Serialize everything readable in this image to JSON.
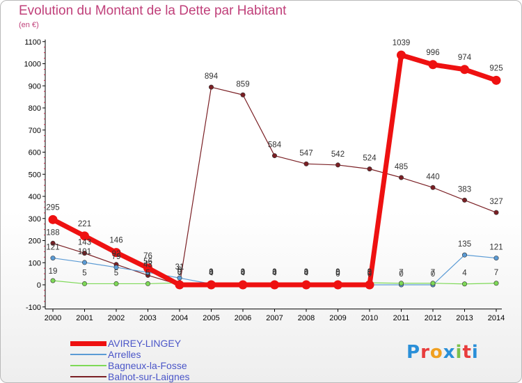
{
  "header": {
    "title": "Evolution du Montant de la Dette par Habitant",
    "unit": "(en €)"
  },
  "logo": {
    "text": "Proxiti",
    "colors": [
      "#2a8fd8",
      "#e83c3c",
      "#f0a020",
      "#2a8fd8",
      "#7cc04a",
      "#e83c3c",
      "#2a8fd8"
    ]
  },
  "chart_data": {
    "type": "line",
    "title": "Evolution du Montant de la Dette par Habitant",
    "ylabel": "(en €)",
    "xlabel": "",
    "x": [
      "2000",
      "2001",
      "2002",
      "2003",
      "2004",
      "2005",
      "2006",
      "2007",
      "2008",
      "2009",
      "2010",
      "2011",
      "2012",
      "2013",
      "2014"
    ],
    "yticks": [
      -100,
      0,
      100,
      200,
      300,
      400,
      500,
      600,
      700,
      800,
      900,
      1000,
      1100
    ],
    "ylim": [
      -100,
      1100
    ],
    "grid": false,
    "legend": "bottom-left",
    "series": [
      {
        "name": "AVIREY-LINGEY",
        "color": "#ee1111",
        "values": [
          295,
          221,
          146,
          76,
          0,
          0,
          0,
          0,
          0,
          0,
          0,
          1039,
          996,
          974,
          925
        ],
        "labels": [
          "295",
          "221",
          "146",
          "76",
          "0",
          "0",
          "0",
          "0",
          "0",
          "0",
          "0",
          "1039",
          "996",
          "974",
          "925"
        ]
      },
      {
        "name": "Arrelles",
        "color": "#5b9bd5",
        "values": [
          121,
          101,
          79,
          56,
          31,
          4,
          4,
          4,
          4,
          0,
          0,
          0,
          0,
          135,
          121
        ],
        "labels": [
          "121",
          "101",
          "79",
          "56",
          "31",
          "4",
          "4",
          "4",
          "4",
          "0",
          "0",
          "0",
          "0",
          "135",
          "121"
        ]
      },
      {
        "name": "Bagneux-la-Fosse",
        "color": "#7ed957",
        "values": [
          19,
          5,
          5,
          5,
          9,
          9,
          9,
          9,
          9,
          9,
          9,
          7,
          7,
          4,
          7
        ],
        "labels": [
          "19",
          "5",
          "5",
          "5",
          "9",
          "9",
          "9",
          "9",
          "9",
          "9",
          "9",
          "7",
          "7",
          "4",
          "7"
        ]
      },
      {
        "name": "Balnot-sur-Laignes",
        "color": "#7a1f24",
        "values": [
          188,
          143,
          92,
          43,
          0,
          894,
          859,
          584,
          547,
          542,
          524,
          485,
          440,
          383,
          327
        ],
        "labels": [
          "188",
          "143",
          "92",
          "43",
          "0",
          "894",
          "859",
          "584",
          "547",
          "542",
          "524",
          "485",
          "440",
          "383",
          "327"
        ]
      }
    ]
  }
}
